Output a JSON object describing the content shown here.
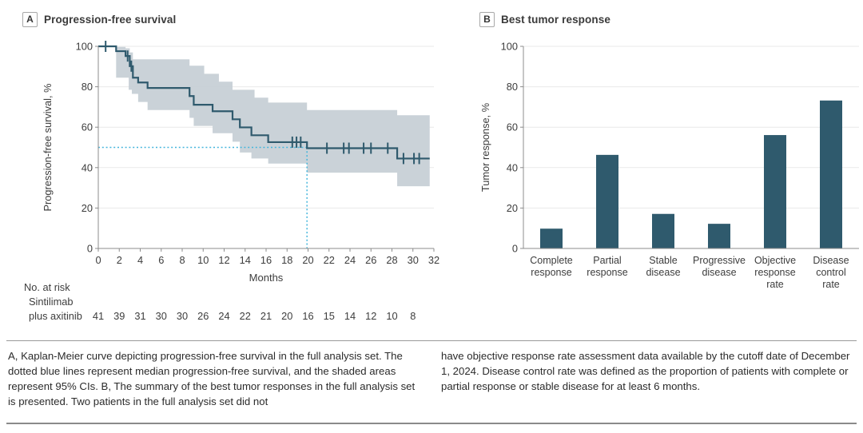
{
  "colors": {
    "curve": "#2f5a6d",
    "band": "#c6ced5",
    "bar": "#2f5a6d",
    "median_line": "#45b6dc",
    "grid": "#e9e9e9",
    "axis": "#8c8c8c",
    "tick_text": "#3d3d3d",
    "title_text": "#3a3a3a"
  },
  "panels": {
    "a": {
      "label": "A",
      "title": "Progression-free survival"
    },
    "b": {
      "label": "B",
      "title": "Best tumor response"
    }
  },
  "chart_data": [
    {
      "type": "line",
      "subtype": "kaplan_meier_step",
      "title": "Progression-free survival",
      "xlabel": "Months",
      "ylabel": "Progression-free survival, %",
      "xlim": [
        0,
        32
      ],
      "ylim": [
        0,
        100
      ],
      "xticks": [
        0,
        2,
        4,
        6,
        8,
        10,
        12,
        14,
        16,
        18,
        20,
        22,
        24,
        26,
        28,
        30,
        32
      ],
      "yticks": [
        0,
        20,
        40,
        60,
        80,
        100
      ],
      "grid": "horizontal",
      "legend_position": "none",
      "series": [
        {
          "name": "Sintilimab plus axitinib",
          "start": [
            0,
            100
          ],
          "end_month": 31.6,
          "steps": [
            [
              1.7,
              97.6
            ],
            [
              2.6,
              95.2
            ],
            [
              3.0,
              90.2
            ],
            [
              3.3,
              84.5
            ],
            [
              3.8,
              82.1
            ],
            [
              4.7,
              79.4
            ],
            [
              8.7,
              75.4
            ],
            [
              9.1,
              71.1
            ],
            [
              10.9,
              67.9
            ],
            [
              12.8,
              63.9
            ],
            [
              13.5,
              59.9
            ],
            [
              14.6,
              56.0
            ],
            [
              16.2,
              52.6
            ],
            [
              19.9,
              49.6
            ],
            [
              28.5,
              44.5
            ]
          ],
          "censors": [
            [
              0.7,
              100
            ],
            [
              2.8,
              95.2
            ],
            [
              3.15,
              90.2
            ],
            [
              18.5,
              52.6
            ],
            [
              18.9,
              52.6
            ],
            [
              19.3,
              52.6
            ],
            [
              21.8,
              49.6
            ],
            [
              23.4,
              49.6
            ],
            [
              23.9,
              49.6
            ],
            [
              25.3,
              49.6
            ],
            [
              26.0,
              49.6
            ],
            [
              27.6,
              49.6
            ],
            [
              29.1,
              44.5
            ],
            [
              30.1,
              44.5
            ],
            [
              30.6,
              44.5
            ]
          ],
          "ci_upper": [
            [
              1.7,
              99.7
            ],
            [
              2.6,
              99.0
            ],
            [
              3.0,
              97.0
            ],
            [
              3.3,
              93.6
            ],
            [
              8.7,
              90.4
            ],
            [
              10.1,
              86.4
            ],
            [
              11.5,
              82.5
            ],
            [
              12.8,
              78.5
            ],
            [
              14.9,
              74.6
            ],
            [
              16.2,
              72.2
            ],
            [
              19.9,
              68.5
            ],
            [
              28.5,
              65.9
            ]
          ],
          "ci_lower": [
            [
              1.7,
              84.5
            ],
            [
              2.9,
              78.5
            ],
            [
              3.2,
              76.5
            ],
            [
              3.8,
              72.5
            ],
            [
              4.7,
              68.5
            ],
            [
              8.7,
              64.6
            ],
            [
              9.1,
              60.6
            ],
            [
              10.9,
              57.0
            ],
            [
              12.8,
              52.8
            ],
            [
              13.5,
              47.5
            ],
            [
              14.6,
              44.5
            ],
            [
              16.2,
              42.0
            ],
            [
              19.9,
              37.5
            ],
            [
              28.5,
              30.8
            ]
          ]
        }
      ],
      "median": {
        "months": 19.9,
        "value": 50
      },
      "no_at_risk": {
        "header": "No. at risk",
        "group_lines": [
          "Sintilimab",
          "plus axitinib"
        ],
        "months": [
          0,
          2,
          4,
          6,
          8,
          10,
          12,
          14,
          16,
          18,
          20,
          22,
          24,
          26,
          28,
          30
        ],
        "values": [
          41,
          39,
          31,
          30,
          30,
          26,
          24,
          22,
          21,
          20,
          16,
          15,
          14,
          12,
          10,
          8
        ]
      }
    },
    {
      "type": "bar",
      "title": "Best tumor response",
      "xlabel": "",
      "ylabel": "Tumor response, %",
      "ylim": [
        0,
        100
      ],
      "yticks": [
        0,
        20,
        40,
        60,
        80,
        100
      ],
      "grid": "horizontal",
      "categories": [
        "Complete response",
        "Partial response",
        "Stable disease",
        "Progressive disease",
        "Objective response rate",
        "Disease control rate"
      ],
      "category_label_lines": [
        [
          "Complete",
          "response"
        ],
        [
          "Partial",
          "response"
        ],
        [
          "Stable",
          "disease"
        ],
        [
          "Progressive",
          "disease"
        ],
        [
          "Objective",
          "response",
          "rate"
        ],
        [
          "Disease",
          "control",
          "rate"
        ]
      ],
      "values": [
        9.8,
        46.3,
        17.1,
        12.2,
        56.1,
        73.2
      ]
    }
  ],
  "caption": {
    "left": "A, Kaplan-Meier curve depicting progression-free survival in the full analysis set. The dotted blue lines represent median progression-free survival, and the shaded areas represent 95% CIs. B, The summary of the best tumor responses in the full analysis set is presented. Two patients in the full analysis set did not",
    "right": "have objective response rate assessment data available by the cutoff date of December 1, 2024. Disease control rate was defined as the proportion of patients with complete or partial response or stable disease for at least 6 months."
  }
}
